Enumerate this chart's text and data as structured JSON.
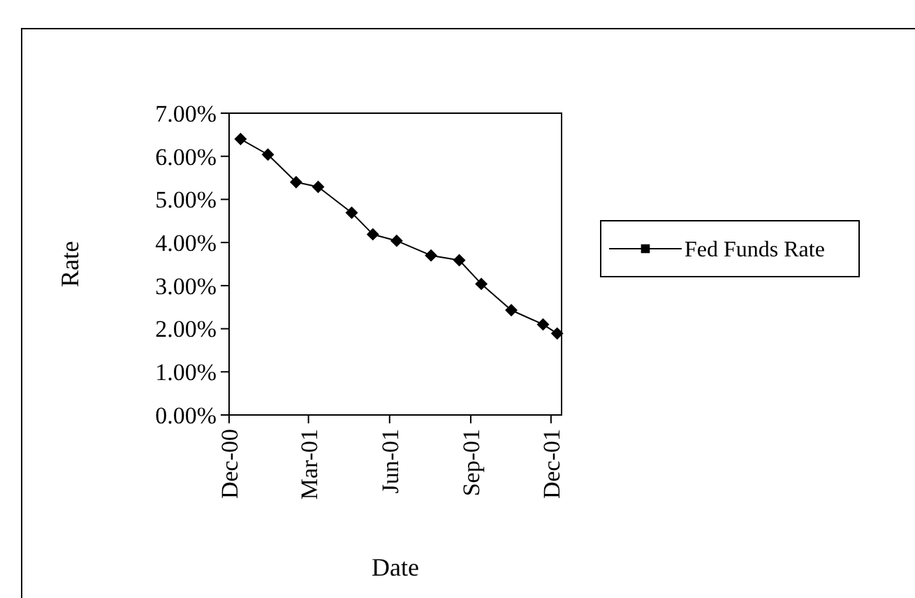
{
  "chart_data": {
    "type": "line",
    "xlabel": "Date",
    "ylabel": "Rate",
    "x": [
      "2000-12-14",
      "2001-01-14",
      "2001-02-15",
      "2001-03-12",
      "2001-04-19",
      "2001-05-13",
      "2001-06-09",
      "2001-07-18",
      "2001-08-19",
      "2001-09-13",
      "2001-10-17",
      "2001-11-22",
      "2001-12-08"
    ],
    "series": [
      {
        "name": "Fed Funds Rate",
        "color": "#000000",
        "values": [
          6.4,
          6.04,
          5.4,
          5.29,
          4.69,
          4.19,
          4.04,
          3.7,
          3.59,
          3.04,
          2.43,
          2.1,
          1.89
        ]
      }
    ],
    "xlim": [
      "2000-12-01",
      "2001-12-13"
    ],
    "xticks": [
      {
        "value": "2000-12-01",
        "label": "Dec-00"
      },
      {
        "value": "2001-03-01",
        "label": "Mar-01"
      },
      {
        "value": "2001-06-01",
        "label": "Jun-01"
      },
      {
        "value": "2001-09-01",
        "label": "Sep-01"
      },
      {
        "value": "2001-12-01",
        "label": "Dec-01"
      }
    ],
    "ylim": [
      0,
      7
    ],
    "yticks": [
      {
        "value": 0,
        "label": "0.00%"
      },
      {
        "value": 1,
        "label": "1.00%"
      },
      {
        "value": 2,
        "label": "2.00%"
      },
      {
        "value": 3,
        "label": "3.00%"
      },
      {
        "value": 4,
        "label": "4.00%"
      },
      {
        "value": 5,
        "label": "5.00%"
      },
      {
        "value": 6,
        "label": "6.00%"
      },
      {
        "value": 7,
        "label": "7.00%"
      }
    ],
    "marker": "diamond",
    "line_style": "solid",
    "grid": false,
    "legend": "right"
  }
}
